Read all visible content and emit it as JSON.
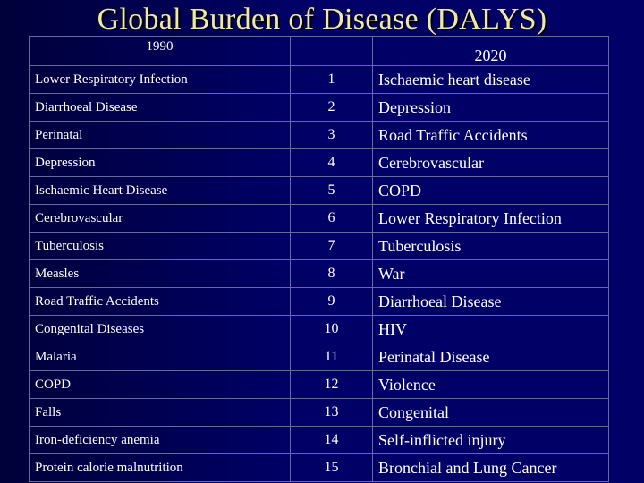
{
  "title": "Global Burden of Disease (DALYS)",
  "header": {
    "col1990": "1990",
    "col2020": "2020"
  },
  "rows": [
    {
      "left": "Lower Respiratory Infection",
      "rank": "1",
      "right": "Ischaemic heart disease"
    },
    {
      "left": "Diarrhoeal Disease",
      "rank": "2",
      "right": "Depression"
    },
    {
      "left": "Perinatal",
      "rank": "3",
      "right": "Road Traffic Accidents"
    },
    {
      "left": "Depression",
      "rank": "4",
      "right": "Cerebrovascular"
    },
    {
      "left": "Ischaemic Heart Disease",
      "rank": "5",
      "right": "COPD"
    },
    {
      "left": "Cerebrovascular",
      "rank": "6",
      "right": "Lower Respiratory Infection"
    },
    {
      "left": "Tuberculosis",
      "rank": "7",
      "right": "Tuberculosis"
    },
    {
      "left": "Measles",
      "rank": "8",
      "right": "War"
    },
    {
      "left": "Road Traffic Accidents",
      "rank": "9",
      "right": "Diarrhoeal Disease"
    },
    {
      "left": "Congenital Diseases",
      "rank": "10",
      "right": "HIV"
    },
    {
      "left": "Malaria",
      "rank": "11",
      "right": "Perinatal Disease"
    },
    {
      "left": "COPD",
      "rank": "12",
      "right": "Violence"
    },
    {
      "left": "Falls",
      "rank": "13",
      "right": "Congenital"
    },
    {
      "left": "Iron-deficiency anemia",
      "rank": "14",
      "right": "Self-inflicted injury"
    },
    {
      "left": "Protein calorie malnutrition",
      "rank": "15",
      "right": "Bronchial and Lung Cancer"
    }
  ]
}
